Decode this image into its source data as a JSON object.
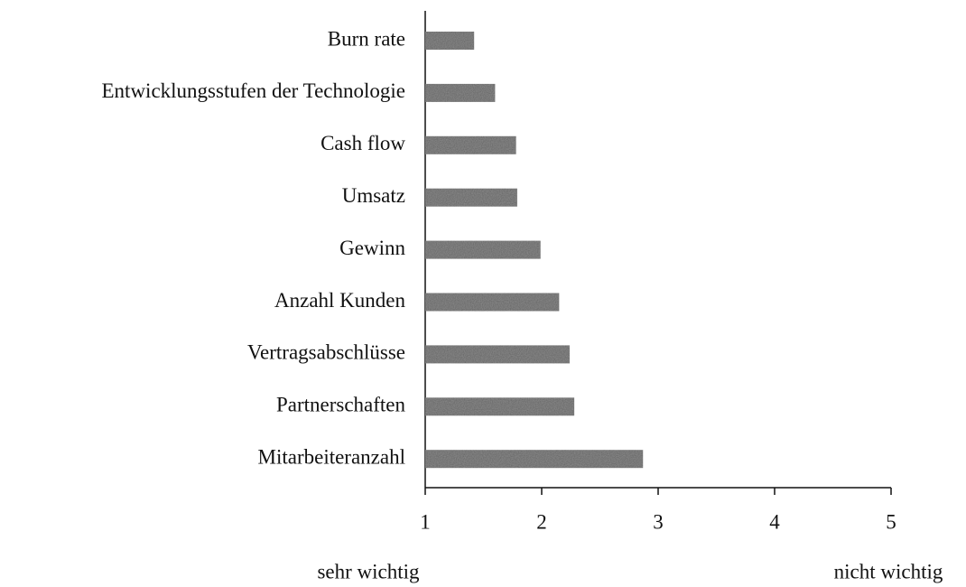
{
  "chart_data": {
    "type": "barh",
    "categories": [
      "Burn rate",
      "Entwicklungsstufen der Technologie",
      "Cash flow",
      "Umsatz",
      "Gewinn",
      "Anzahl Kunden",
      "Vertragsabschlüsse",
      "Partnerschaften",
      "Mitarbeiteranzahl"
    ],
    "values": [
      1.42,
      1.6,
      1.78,
      1.79,
      1.99,
      2.15,
      2.24,
      2.28,
      2.87
    ],
    "color": "#8a8a8a",
    "xlim": [
      1,
      5
    ],
    "xticks": [
      1,
      2,
      3,
      4,
      5
    ],
    "annotations": [
      "sehr wichtig",
      "nicht wichtig"
    ]
  }
}
